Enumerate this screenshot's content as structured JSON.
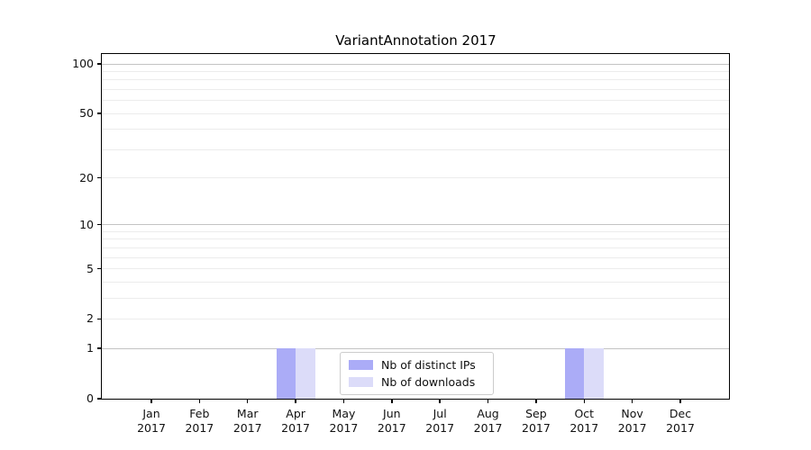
{
  "title": "VariantAnnotation 2017",
  "chart_data": {
    "type": "bar",
    "title": "VariantAnnotation 2017",
    "year": "2017",
    "categories": [
      "Jan",
      "Feb",
      "Mar",
      "Apr",
      "May",
      "Jun",
      "Jul",
      "Aug",
      "Sep",
      "Oct",
      "Nov",
      "Dec"
    ],
    "series": [
      {
        "name": "Nb of distinct IPs",
        "color": "#abacf7",
        "values": [
          0,
          0,
          0,
          1,
          0,
          0,
          0,
          0,
          0,
          1,
          0,
          0
        ]
      },
      {
        "name": "Nb of downloads",
        "color": "#dcdcf9",
        "values": [
          0,
          0,
          0,
          1,
          0,
          0,
          0,
          0,
          0,
          1,
          0,
          0
        ]
      }
    ],
    "yscale": "log10(1+v)",
    "ylim": [
      0,
      114.8
    ],
    "yticks_labeled": [
      100,
      50,
      20,
      10,
      5,
      2,
      1,
      0
    ],
    "grid_major": [
      1,
      10,
      100
    ],
    "grid_minor": [
      2,
      3,
      4,
      5,
      6,
      7,
      8,
      9,
      20,
      30,
      40,
      50,
      60,
      70,
      80,
      90
    ],
    "grid": "horizontal",
    "legend_position": "lower center",
    "colors": {
      "grid_major": "#c3c3c3",
      "grid_minor": "#ececec",
      "axis": "#000000",
      "text": "#111111",
      "legend_border": "#cccccc"
    }
  }
}
